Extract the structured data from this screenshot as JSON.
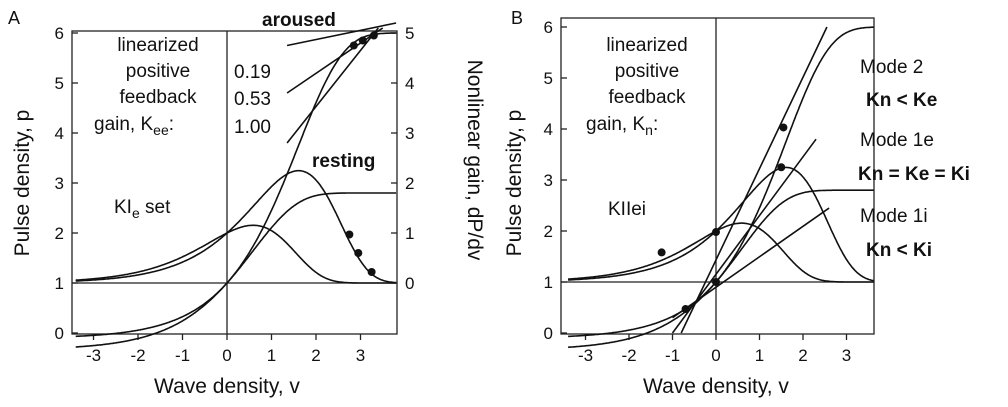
{
  "panels": [
    {
      "letter": "A",
      "xlabel": "Wave density, v",
      "ylabel": "Pulse density, p",
      "ylabel_right": "Nonlinear gain, dP/dv",
      "xticks": [
        "-3",
        "-2",
        "-1",
        "0",
        "1",
        "2",
        "3"
      ],
      "yticks": [
        "0",
        "1",
        "2",
        "3",
        "4",
        "5",
        "6"
      ],
      "yticks_right": [
        "0",
        "1",
        "2",
        "3",
        "4",
        "5"
      ],
      "annot_lines": [
        "linearized",
        "positive",
        "feedback"
      ],
      "annot_gain": "gain, K",
      "annot_gain_sub": "ee",
      "annot_gain_end": ":",
      "set_label": "KI",
      "set_label_sub": "e",
      "set_label_end": " set",
      "aroused": "aroused",
      "resting": "resting",
      "gains": [
        "0.19",
        "0.53",
        "1.00"
      ]
    },
    {
      "letter": "B",
      "xlabel": "Wave density, v",
      "ylabel": "Pulse density, p",
      "xticks": [
        "-3",
        "-2",
        "-1",
        "0",
        "1",
        "2",
        "3"
      ],
      "yticks": [
        "0",
        "1",
        "2",
        "3",
        "4",
        "5",
        "6"
      ],
      "annot_lines": [
        "linearized",
        "positive",
        "feedback"
      ],
      "annot_gain": "gain, K",
      "annot_gain_sub": "n",
      "annot_gain_end": ":",
      "set_label": "KIIei",
      "modes": [
        {
          "name": "Mode 2",
          "condition": "Kn < Ke"
        },
        {
          "name": "Mode 1e",
          "condition": "Kn = Ke = Ki"
        },
        {
          "name": "Mode 1i",
          "condition": "Kn < Ki"
        }
      ]
    }
  ],
  "chart_data": [
    {
      "panel": "A",
      "type": "line",
      "xlim": [
        -3.4,
        3.8
      ],
      "ylim": [
        0,
        6
      ],
      "ylim_right": [
        0,
        5
      ],
      "grid": false,
      "curves": [
        {
          "kind": "sigmoid",
          "Qm": 5,
          "note": "aroused sigmoid, saturates near 6"
        },
        {
          "kind": "sigmoid",
          "Qm": 1.8,
          "note": "resting sigmoid, saturates near 2.8"
        },
        {
          "kind": "derivative",
          "Qm": 5,
          "note": "gain curve, peak near 3.2 at v=1.6"
        },
        {
          "kind": "derivative",
          "Qm": 1.8,
          "note": "gain curve, peak near 2.1 at v=0.6"
        }
      ],
      "tangent_lines": [
        {
          "gain": "0.19",
          "from": [
            1.35,
            5.75
          ],
          "to": [
            3.8,
            6.2
          ]
        },
        {
          "gain": "0.53",
          "from": [
            1.35,
            4.8
          ],
          "to": [
            3.5,
            6.1
          ]
        },
        {
          "gain": "1.00",
          "from": [
            1.35,
            3.8
          ],
          "to": [
            3.4,
            6.1
          ]
        }
      ],
      "points": [
        {
          "x": 2.75,
          "y": 1.97
        },
        {
          "x": 2.95,
          "y": 1.6
        },
        {
          "x": 3.25,
          "y": 1.22
        },
        {
          "x": 2.85,
          "y": 5.75
        },
        {
          "x": 3.05,
          "y": 5.85
        },
        {
          "x": 3.3,
          "y": 5.95
        }
      ]
    },
    {
      "panel": "B",
      "type": "line",
      "xlim": [
        -3.4,
        3.8
      ],
      "ylim": [
        0,
        6
      ],
      "grid": false,
      "curves": [
        {
          "kind": "sigmoid",
          "Qm": 5,
          "note": "steep sigmoid, saturates near 6"
        },
        {
          "kind": "sigmoid",
          "Qm": 1.8,
          "note": "sigmoid, saturates near 2.8"
        },
        {
          "kind": "derivative",
          "Qm": 5,
          "note": "gain curve, peak near 3.2 at v=1.6"
        },
        {
          "kind": "derivative",
          "Qm": 1.8,
          "note": "gain curve, peak near 2.1 at v=0.6"
        }
      ],
      "tangent_lines": [
        {
          "mode": "Mode 2",
          "from": [
            -0.8,
            0.0
          ],
          "to": [
            2.55,
            6.0
          ]
        },
        {
          "mode": "Mode 1e",
          "from": [
            -1.0,
            0.0
          ],
          "to": [
            2.3,
            3.8
          ]
        },
        {
          "mode": "Mode 1i",
          "from": [
            -1.0,
            0.3
          ],
          "to": [
            2.6,
            2.45
          ]
        }
      ],
      "points": [
        {
          "x": -1.25,
          "y": 1.58
        },
        {
          "x": 0.0,
          "y": 1.98
        },
        {
          "x": 0.0,
          "y": 1.0
        },
        {
          "x": -0.7,
          "y": 0.47
        },
        {
          "x": 1.5,
          "y": 3.25
        },
        {
          "x": 1.55,
          "y": 4.03
        }
      ]
    }
  ]
}
